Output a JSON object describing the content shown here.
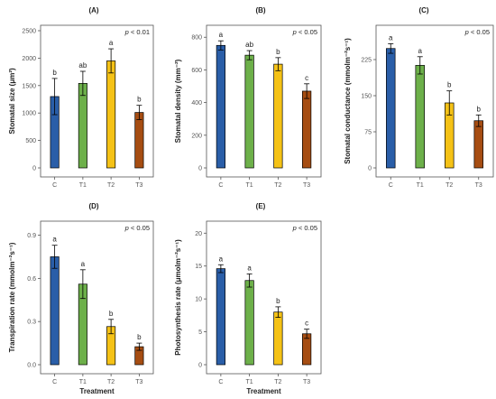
{
  "colors": {
    "C": "#2a5ea8",
    "T1": "#6db04a",
    "T2": "#f5c216",
    "T3": "#a64d12",
    "axis": "#555555",
    "text": "#222222"
  },
  "chart_data": [
    {
      "type": "bar",
      "panel": "(A)",
      "pvalue": "p < 0.01",
      "categories": [
        "C",
        "T1",
        "T2",
        "T3"
      ],
      "values": [
        1300,
        1540,
        1950,
        1010
      ],
      "errors": [
        330,
        220,
        220,
        130
      ],
      "letters": [
        "b",
        "ab",
        "a",
        "b"
      ],
      "ylabel": "Stomatal size (μm²)",
      "xlabel": "",
      "ylim": [
        0,
        2500
      ],
      "yticks": [
        0,
        500,
        1000,
        1500,
        2000,
        2500
      ]
    },
    {
      "type": "bar",
      "panel": "(B)",
      "pvalue": "p < 0.05",
      "categories": [
        "C",
        "T1",
        "T2",
        "T3"
      ],
      "values": [
        750,
        690,
        635,
        470
      ],
      "errors": [
        28,
        28,
        40,
        45
      ],
      "letters": [
        "a",
        "ab",
        "b",
        "c"
      ],
      "ylabel": "Stomatal density (mm⁻²)",
      "xlabel": "",
      "ylim": [
        0,
        840
      ],
      "yticks": [
        0,
        200,
        400,
        600,
        800
      ]
    },
    {
      "type": "bar",
      "panel": "(C)",
      "pvalue": "p < 0.05",
      "categories": [
        "C",
        "T1",
        "T2",
        "T3"
      ],
      "values": [
        248,
        213,
        135,
        98
      ],
      "errors": [
        10,
        18,
        25,
        12
      ],
      "letters": [
        "a",
        "a",
        "b",
        "b"
      ],
      "ylabel": "Stomatal conductance (mmolm⁻²s⁻¹)",
      "xlabel": "",
      "ylim": [
        0,
        285
      ],
      "yticks": [
        0,
        75,
        150,
        225
      ]
    },
    {
      "type": "bar",
      "panel": "(D)",
      "pvalue": "p < 0.05",
      "categories": [
        "C",
        "T1",
        "T2",
        "T3"
      ],
      "values": [
        0.75,
        0.56,
        0.265,
        0.125
      ],
      "errors": [
        0.08,
        0.1,
        0.05,
        0.025
      ],
      "letters": [
        "a",
        "a",
        "b",
        "b"
      ],
      "ylabel": "Transpiration rate (mmolm⁻²s⁻¹)",
      "xlabel": "Treatment",
      "ylim": [
        0,
        0.96
      ],
      "yticks": [
        0,
        0.3,
        0.6,
        0.9
      ]
    },
    {
      "type": "bar",
      "panel": "(E)",
      "pvalue": "p < 0.05",
      "categories": [
        "C",
        "T1",
        "T2",
        "T3"
      ],
      "values": [
        14.6,
        12.8,
        8.0,
        4.7
      ],
      "errors": [
        0.6,
        1.0,
        0.8,
        0.7
      ],
      "letters": [
        "a",
        "a",
        "b",
        "c"
      ],
      "ylabel": "Photosynthesis rate (μmolm⁻²s⁻¹)",
      "xlabel": "Treatment",
      "ylim": [
        0,
        21
      ],
      "yticks": [
        0,
        5,
        10,
        15,
        20
      ]
    }
  ]
}
